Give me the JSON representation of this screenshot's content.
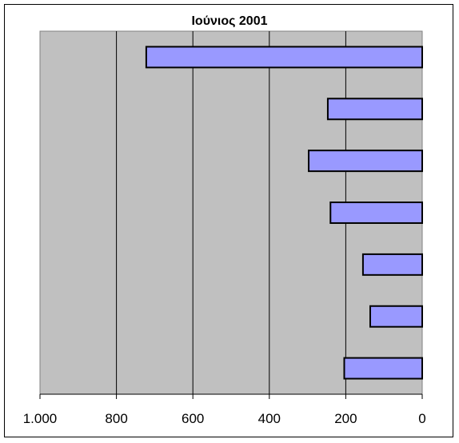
{
  "chart_data": {
    "type": "bar",
    "orientation": "horizontal",
    "x_axis_reversed": true,
    "title": "Ιούνιος 2001",
    "categories": [
      "",
      "",
      "",
      "",
      "",
      "",
      ""
    ],
    "values": [
      722,
      247,
      297,
      240,
      155,
      136,
      204
    ],
    "xlim": [
      0,
      1000
    ],
    "x_ticks": [
      1000,
      800,
      600,
      400,
      200,
      0
    ],
    "x_tick_labels": [
      "1.000",
      "800",
      "600",
      "400",
      "200",
      "0"
    ],
    "grid": "vertical",
    "legend": "none",
    "colors": {
      "bar_fill": "#9999ff",
      "bar_stroke": "#000000",
      "plot_background": "#c0c0c0",
      "gridline": "#000000"
    }
  }
}
